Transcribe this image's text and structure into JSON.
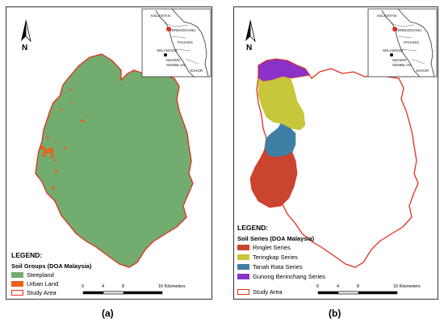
{
  "colors": {
    "steepland": "#72ad6f",
    "urban": "#e8621a",
    "boundary": "#e0301e",
    "ringlet": "#c9452f",
    "teringkap": "#c8c63a",
    "tanah_rata": "#3f7fa5",
    "gunong": "#8a31c7"
  },
  "map_a": {
    "caption": "(a)",
    "north_label": "N",
    "legend": {
      "title": "LEGEND:",
      "subtitle": "Soil Groups (DOA Malaysia)",
      "items": [
        {
          "label": "Steepland",
          "color": "#72ad6f"
        },
        {
          "label": "Urban Land",
          "color": "#e8621a"
        },
        {
          "label": "Study Area",
          "color": "outline"
        }
      ]
    },
    "scale": {
      "ticks": [
        "0",
        "4",
        "8",
        "16 Kilometers"
      ]
    }
  },
  "map_b": {
    "caption": "(b)",
    "north_label": "N",
    "legend": {
      "title": "LEGEND:",
      "subtitle": "Soil Series (DOA Malaysia)",
      "items": [
        {
          "label": "Ringlet Series",
          "color": "#c9452f"
        },
        {
          "label": "Teringkap Series",
          "color": "#c8c63a"
        },
        {
          "label": "Tanah Rata Series",
          "color": "#3f7fa5"
        },
        {
          "label": "Gunong Berinchang Series",
          "color": "#8a31c7"
        },
        {
          "label": "Study Area",
          "color": "outline"
        }
      ]
    },
    "scale": {
      "ticks": [
        "0",
        "4",
        "8",
        "16 Kilometers"
      ]
    }
  },
  "inset": {
    "labels": [
      "KELANTAN",
      "TERENGGANU",
      "PAHANG",
      "SELANGOR",
      "NEGERI",
      "SEMBILAN",
      "JOHOR"
    ]
  }
}
